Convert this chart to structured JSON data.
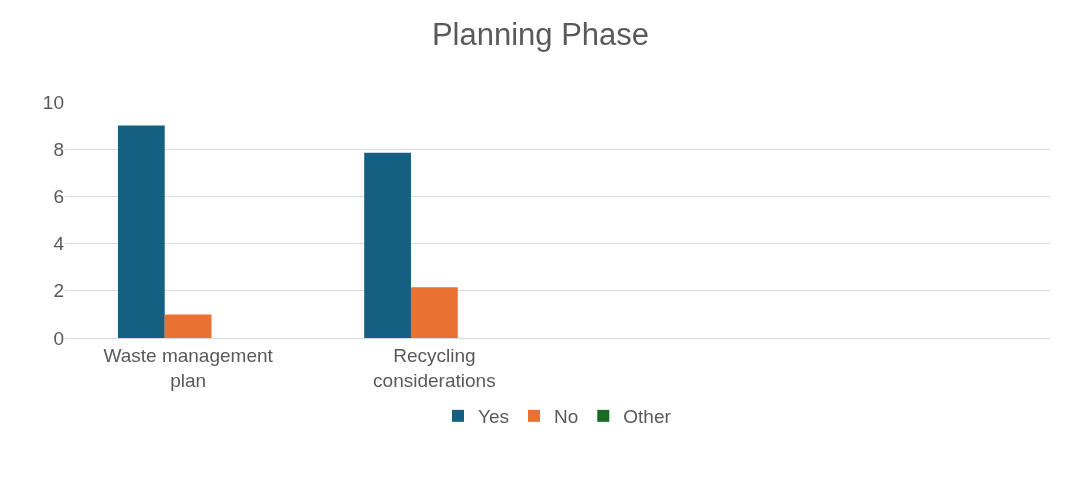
{
  "chart_data": {
    "type": "bar",
    "title": "Planning Phase",
    "categories": [
      "Waste management plan",
      "Recycling considerations",
      null,
      null
    ],
    "series": [
      {
        "name": "Yes",
        "color": "#156082",
        "values": [
          9,
          7.85,
          null,
          null
        ]
      },
      {
        "name": "No",
        "color": "#e97132",
        "values": [
          1,
          2.15,
          null,
          null
        ]
      },
      {
        "name": "Other",
        "color": "#196b24",
        "values": [
          null,
          null,
          null,
          null
        ]
      }
    ],
    "ylim": [
      0,
      10
    ],
    "yticks": [
      0,
      2,
      4,
      6,
      8,
      10
    ],
    "grid": "y",
    "legend": "bottom"
  }
}
